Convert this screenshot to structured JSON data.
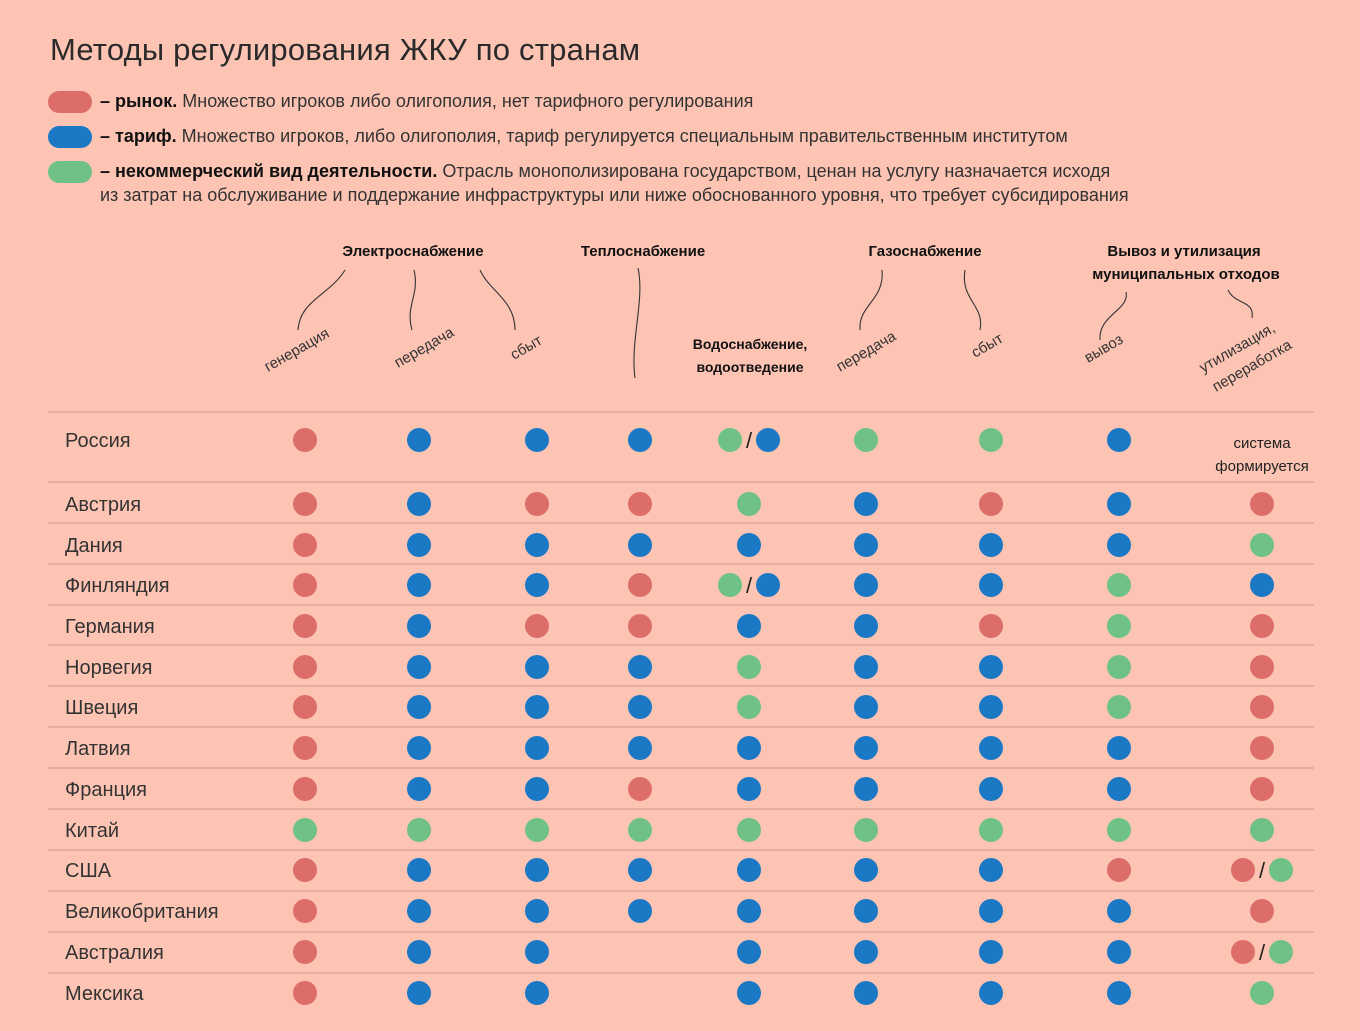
{
  "title": "Методы регулирования ЖКУ по странам",
  "legend": [
    {
      "key": "R",
      "color": "#dc6d69",
      "label": "– рынок.",
      "text": " Множество игроков либо олигополия, нет тарифного регулирования"
    },
    {
      "key": "B",
      "color": "#1b78c5",
      "label": "– тариф.",
      "text": " Множество игроков, либо олигополия, тариф регулируется специальным правительственным институтом"
    },
    {
      "key": "G",
      "color": "#6fc188",
      "label": "– некоммерческий вид деятельности.",
      "text": " Отрасль монополизирована государством, ценан на услугу назначается исходя",
      "text2": "из затрат на обслуживание и поддержание инфраструктуры или ниже обоснованного уровня, что требует субсидирования"
    }
  ],
  "chart_data": {
    "type": "table",
    "colors": {
      "R": "#dc6d69",
      "B": "#1b78c5",
      "G": "#6fc188"
    },
    "groups": [
      {
        "label": "Электроснабжение"
      },
      {
        "label": "Теплоснабжение"
      },
      {
        "label": "Газоснабжение"
      },
      {
        "label": "Вывоз и утилизация",
        "label2": "муниципальных отходов"
      }
    ],
    "columns": [
      {
        "label": "генерация"
      },
      {
        "label": "передача"
      },
      {
        "label": "сбыт"
      },
      {
        "label": ""
      },
      {
        "label": "Водоснабжение,",
        "label2": "водоотведение"
      },
      {
        "label": "передача"
      },
      {
        "label": "сбыт"
      },
      {
        "label": "вывоз"
      },
      {
        "label": "утилизация,",
        "label2": "переработка"
      }
    ],
    "rows": [
      {
        "country": "Россия",
        "values": [
          "R",
          "B",
          "B",
          "B",
          "G/B",
          "G",
          "G",
          "B",
          "note"
        ],
        "note": [
          "система",
          "формируется"
        ]
      },
      {
        "country": "Австрия",
        "values": [
          "R",
          "B",
          "R",
          "R",
          "G",
          "B",
          "R",
          "B",
          "R"
        ]
      },
      {
        "country": "Дания",
        "values": [
          "R",
          "B",
          "B",
          "B",
          "B",
          "B",
          "B",
          "B",
          "G"
        ]
      },
      {
        "country": "Финляндия",
        "values": [
          "R",
          "B",
          "B",
          "R",
          "G/B",
          "B",
          "B",
          "G",
          "B"
        ]
      },
      {
        "country": "Германия",
        "values": [
          "R",
          "B",
          "R",
          "R",
          "B",
          "B",
          "R",
          "G",
          "R"
        ]
      },
      {
        "country": "Норвегия",
        "values": [
          "R",
          "B",
          "B",
          "B",
          "G",
          "B",
          "B",
          "G",
          "R"
        ]
      },
      {
        "country": "Швеция",
        "values": [
          "R",
          "B",
          "B",
          "B",
          "G",
          "B",
          "B",
          "G",
          "R"
        ]
      },
      {
        "country": "Латвия",
        "values": [
          "R",
          "B",
          "B",
          "B",
          "B",
          "B",
          "B",
          "B",
          "R"
        ]
      },
      {
        "country": "Франция",
        "values": [
          "R",
          "B",
          "B",
          "R",
          "B",
          "B",
          "B",
          "B",
          "R"
        ]
      },
      {
        "country": "Китай",
        "values": [
          "G",
          "G",
          "G",
          "G",
          "G",
          "G",
          "G",
          "G",
          "G"
        ]
      },
      {
        "country": "США",
        "values": [
          "R",
          "B",
          "B",
          "B",
          "B",
          "B",
          "B",
          "R",
          "R/G"
        ]
      },
      {
        "country": "Великобритания",
        "values": [
          "R",
          "B",
          "B",
          "B",
          "B",
          "B",
          "B",
          "B",
          "R"
        ]
      },
      {
        "country": "Австралия",
        "values": [
          "R",
          "B",
          "B",
          "",
          "B",
          "B",
          "B",
          "B",
          "R/G"
        ]
      },
      {
        "country": "Мексика",
        "values": [
          "R",
          "B",
          "B",
          "",
          "B",
          "B",
          "B",
          "B",
          "G"
        ]
      }
    ]
  }
}
